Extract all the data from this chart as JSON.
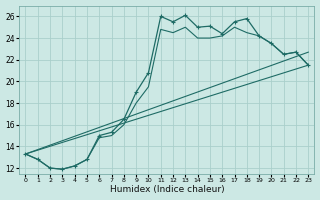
{
  "title": "",
  "xlabel": "Humidex (Indice chaleur)",
  "bg_color": "#cce8e4",
  "grid_color": "#aacfcb",
  "line_color": "#1e6b65",
  "xlim": [
    -0.5,
    23.5
  ],
  "ylim": [
    11.5,
    27.0
  ],
  "yticks": [
    12,
    14,
    16,
    18,
    20,
    22,
    24,
    26
  ],
  "xticks": [
    0,
    1,
    2,
    3,
    4,
    5,
    6,
    7,
    8,
    9,
    10,
    11,
    12,
    13,
    14,
    15,
    16,
    17,
    18,
    19,
    20,
    21,
    22,
    23
  ],
  "line1_x": [
    0,
    1,
    2,
    3,
    4,
    5,
    6,
    7,
    8,
    9,
    10,
    11,
    12,
    13,
    14,
    15,
    16,
    17,
    18,
    19,
    20,
    21,
    22,
    23
  ],
  "line1_y": [
    13.3,
    12.8,
    12.0,
    11.9,
    12.2,
    12.8,
    15.0,
    15.3,
    16.5,
    19.0,
    20.8,
    26.0,
    25.5,
    26.1,
    25.0,
    25.1,
    24.4,
    25.5,
    25.8,
    24.2,
    23.5,
    22.5,
    22.7,
    21.5
  ],
  "line2_x": [
    0,
    1,
    2,
    3,
    4,
    5,
    6,
    7,
    8,
    9,
    10,
    11,
    12,
    13,
    14,
    15,
    16,
    17,
    18,
    19,
    20,
    21,
    22,
    23
  ],
  "line2_y": [
    13.3,
    12.8,
    12.0,
    11.9,
    12.2,
    12.8,
    14.8,
    15.0,
    16.0,
    18.0,
    19.5,
    24.8,
    24.5,
    25.0,
    24.0,
    24.0,
    24.2,
    25.0,
    24.5,
    24.2,
    23.5,
    22.5,
    22.7,
    21.5
  ],
  "line3_x": [
    0,
    23
  ],
  "line3_y": [
    13.3,
    21.5
  ],
  "line4_x": [
    0,
    23
  ],
  "line4_y": [
    13.3,
    22.7
  ]
}
